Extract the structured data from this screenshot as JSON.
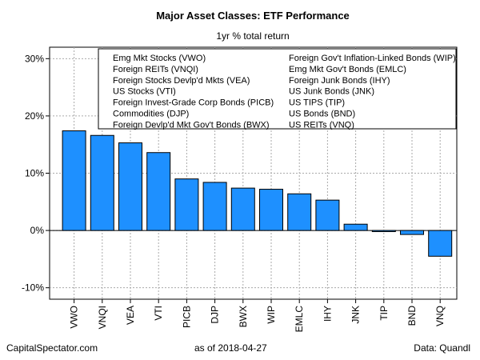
{
  "chart_data": {
    "type": "bar",
    "title": "Major Asset Classes: ETF Performance",
    "subtitle": "1yr % total return",
    "categories": [
      "VWO",
      "VNQI",
      "VEA",
      "VTI",
      "PICB",
      "DJP",
      "BWX",
      "WIP",
      "EMLC",
      "IHY",
      "JNK",
      "TIP",
      "BND",
      "VNQ"
    ],
    "values": [
      17.4,
      16.6,
      15.3,
      13.6,
      9.0,
      8.4,
      7.4,
      7.2,
      6.4,
      5.3,
      1.1,
      -0.2,
      -0.7,
      -4.5
    ],
    "ylim": [
      -12,
      32
    ],
    "y_ticks": [
      -10,
      0,
      10,
      20,
      30
    ],
    "y_tick_labels": [
      "-10%",
      "0%",
      "10%",
      "20%",
      "30%"
    ],
    "grid": true,
    "legend_position": "top-right",
    "legend": [
      "Emg Mkt Stocks (VWO)",
      "Foreign REITs (VNQI)",
      "Foreign Stocks Devlp'd Mkts (VEA)",
      "US Stocks (VTI)",
      "Foreign Invest-Grade Corp Bonds (PICB)",
      "Commodities (DJP)",
      "Foreign Devlp'd Mkt Gov't Bonds (BWX)",
      "Foreign Gov't Inflation-Linked Bonds (WIP)",
      "Emg Mkt Gov't Bonds (EMLC)",
      "Foreign Junk Bonds (IHY)",
      "US Junk Bonds (JNK)",
      "US TIPS (TIP)",
      "US Bonds (BND)",
      "US REITs (VNQ)"
    ],
    "bar_color": "#1e90ff"
  },
  "footer": {
    "source": "CapitalSpectator.com",
    "as_of": "as of   2018-04-27",
    "data_credit": "Data: Quandl"
  }
}
